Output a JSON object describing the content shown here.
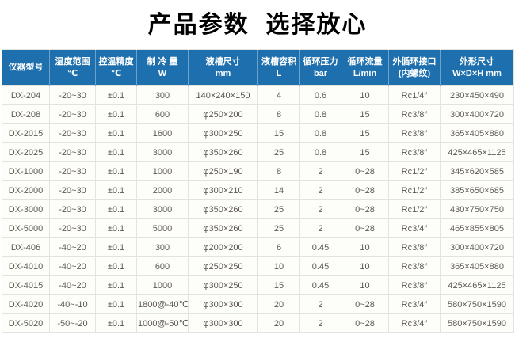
{
  "title": "产品参数  选择放心",
  "colors": {
    "header_bg": "#1e6fad",
    "header_text": "#ffffff",
    "row_bg": "#fdfdfa",
    "row_text": "#5c574f",
    "border": "#e2e2de"
  },
  "table": {
    "headers": [
      {
        "line1": "仪器型号",
        "line2": ""
      },
      {
        "line1": "温度范围",
        "line2": "℃"
      },
      {
        "line1": "控温精度",
        "line2": "℃"
      },
      {
        "line1": "制 冷 量",
        "line2": "W"
      },
      {
        "line1": "液槽尺寸",
        "line2": "mm"
      },
      {
        "line1": "液槽容积",
        "line2": "L"
      },
      {
        "line1": "循环压力",
        "line2": "bar"
      },
      {
        "line1": "循环流量",
        "line2": "L/min"
      },
      {
        "line1": "外循环接口",
        "line2": "(内螺纹)"
      },
      {
        "line1": "外形尺寸",
        "line2": "W×D×H mm"
      }
    ],
    "rows": [
      [
        "DX-204",
        "-20~30",
        "±0.1",
        "300",
        "140×240×150",
        "4",
        "0.6",
        "10",
        "Rc1/4″",
        "230×450×490"
      ],
      [
        "DX-208",
        "-20~30",
        "±0.1",
        "600",
        "φ250×200",
        "8",
        "0.8",
        "15",
        "Rc3/8″",
        "300×400×720"
      ],
      [
        "DX-2015",
        "-20~30",
        "±0.1",
        "1600",
        "φ300×250",
        "15",
        "0.8",
        "15",
        "Rc3/8″",
        "365×405×880"
      ],
      [
        "DX-2025",
        "-20~30",
        "±0.1",
        "3000",
        "φ350×260",
        "25",
        "0.8",
        "15",
        "Rc3/8″",
        "425×465×1125"
      ],
      [
        "DX-1000",
        "-20~30",
        "±0.1",
        "1000",
        "φ250×190",
        "8",
        "2",
        "0~28",
        "Rc1/2″",
        "345×620×585"
      ],
      [
        "DX-2000",
        "-20~30",
        "±0.1",
        "2000",
        "φ300×210",
        "14",
        "2",
        "0~28",
        "Rc1/2″",
        "385×650×685"
      ],
      [
        "DX-3000",
        "-20~30",
        "±0.1",
        "3000",
        "φ350×260",
        "25",
        "2",
        "0~28",
        "Rc1/2″",
        "430×750×750"
      ],
      [
        "DX-5000",
        "-20~30",
        "±0.1",
        "5000",
        "φ350×260",
        "25",
        "2",
        "0~28",
        "Rc3/4″",
        "465×855×805"
      ],
      [
        "DX-406",
        "-40~20",
        "±0.1",
        "300",
        "φ200×200",
        "6",
        "0.45",
        "10",
        "Rc3/8″",
        "300×400×720"
      ],
      [
        "DX-4010",
        "-40~20",
        "±0.1",
        "600",
        "φ250×250",
        "10",
        "0.45",
        "10",
        "Rc3/8″",
        "365×405×880"
      ],
      [
        "DX-4015",
        "-40~20",
        "±0.1",
        "1000",
        "φ300×250",
        "15",
        "0.45",
        "10",
        "Rc3/8″",
        "425×465×1125"
      ],
      [
        "DX-4020",
        "-40~-10",
        "±0.1",
        "1800@-40℃",
        "φ300×300",
        "20",
        "2",
        "0~28",
        "Rc3/4″",
        "580×750×1590"
      ],
      [
        "DX-5020",
        "-50~-20",
        "±0.1",
        "1000@-50℃",
        "φ300×300",
        "20",
        "2",
        "0~28",
        "Rc3/4″",
        "580×750×1590"
      ]
    ]
  }
}
